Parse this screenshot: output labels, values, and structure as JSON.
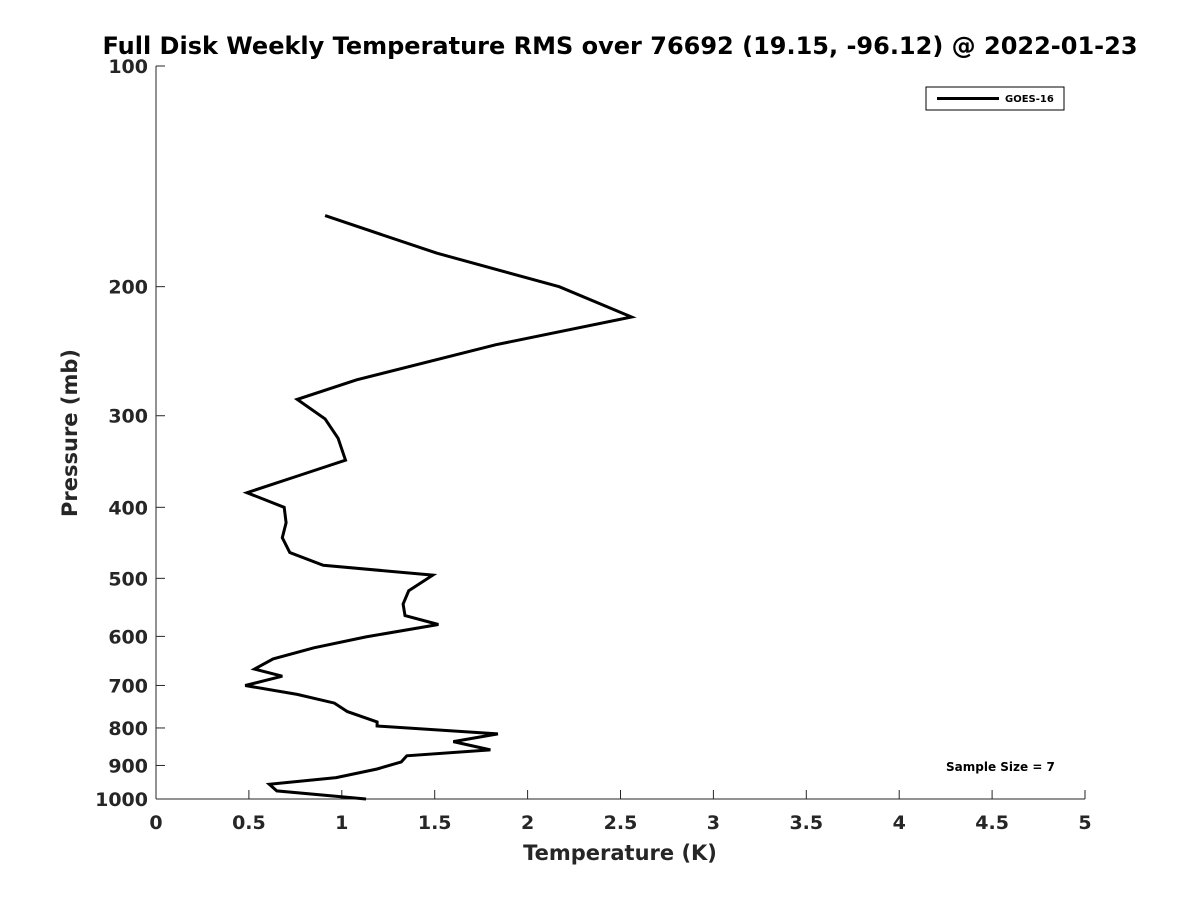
{
  "chart_data": {
    "type": "line",
    "title": "Full Disk Weekly Temperature RMS over 76692 (19.15, -96.12) @ 2022-01-23",
    "xlabel": "Temperature (K)",
    "ylabel": "Pressure (mb)",
    "xlim": [
      0,
      5
    ],
    "ylim": [
      100,
      1000
    ],
    "y_scale": "log",
    "y_reversed": true,
    "grid": false,
    "legend_position": "top-right",
    "x_ticks": [
      "0",
      "0.5",
      "1",
      "1.5",
      "2",
      "2.5",
      "3",
      "3.5",
      "4",
      "4.5",
      "5"
    ],
    "y_ticks": [
      "100",
      "200",
      "300",
      "400",
      "500",
      "600",
      "700",
      "800",
      "900",
      "1000"
    ],
    "annotation": "Sample Size = 7",
    "series": [
      {
        "name": "GOES-16",
        "color": "#000000",
        "points": [
          [
            0.91,
            160
          ],
          [
            1.51,
            180
          ],
          [
            2.17,
            200
          ],
          [
            2.56,
            220
          ],
          [
            1.83,
            240
          ],
          [
            1.08,
            268
          ],
          [
            0.76,
            285
          ],
          [
            0.91,
            303
          ],
          [
            0.98,
            322
          ],
          [
            1.02,
            345
          ],
          [
            0.77,
            362
          ],
          [
            0.49,
            382
          ],
          [
            0.69,
            400
          ],
          [
            0.7,
            420
          ],
          [
            0.68,
            440
          ],
          [
            0.72,
            461
          ],
          [
            0.9,
            480
          ],
          [
            1.49,
            495
          ],
          [
            1.36,
            520
          ],
          [
            1.33,
            542
          ],
          [
            1.34,
            562
          ],
          [
            1.52,
            578
          ],
          [
            1.13,
            601
          ],
          [
            0.85,
            622
          ],
          [
            0.63,
            644
          ],
          [
            0.53,
            665
          ],
          [
            0.68,
            680
          ],
          [
            0.48,
            700
          ],
          [
            0.76,
            720
          ],
          [
            0.96,
            740
          ],
          [
            1.03,
            760
          ],
          [
            1.19,
            785
          ],
          [
            1.19,
            795
          ],
          [
            1.84,
            815
          ],
          [
            1.6,
            835
          ],
          [
            1.8,
            857
          ],
          [
            1.35,
            873
          ],
          [
            1.32,
            890
          ],
          [
            1.19,
            910
          ],
          [
            0.97,
            935
          ],
          [
            0.61,
            955
          ],
          [
            0.65,
            975
          ],
          [
            1.13,
            1000
          ]
        ]
      }
    ]
  }
}
